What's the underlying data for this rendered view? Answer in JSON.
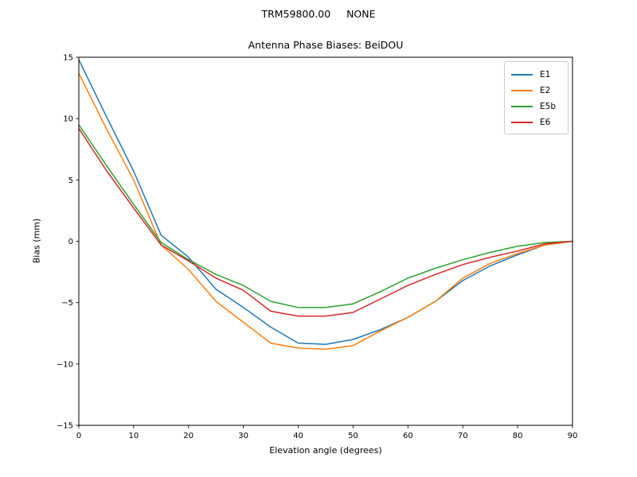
{
  "figure": {
    "title": "TRM59800.00     NONE",
    "background": "#ffffff"
  },
  "chart_data": {
    "type": "line",
    "title": "Antenna Phase Biases: BeiDOU",
    "xlabel": "Elevation angle (degrees)",
    "ylabel": "Bias (mm)",
    "xlim": [
      0,
      90
    ],
    "ylim": [
      -15,
      15
    ],
    "xticks": [
      0,
      10,
      20,
      30,
      40,
      50,
      60,
      70,
      80,
      90
    ],
    "yticks": [
      -15,
      -10,
      -5,
      0,
      5,
      10,
      15
    ],
    "grid": false,
    "legend": {
      "position": "upper right",
      "border_color": "#cccccc"
    },
    "x": [
      0,
      5,
      10,
      15,
      20,
      25,
      30,
      35,
      40,
      45,
      50,
      55,
      60,
      65,
      70,
      75,
      80,
      85,
      90
    ],
    "series": [
      {
        "name": "E1",
        "color": "#1f77b4",
        "values": [
          14.8,
          10.2,
          5.7,
          0.5,
          -1.3,
          -3.9,
          -5.4,
          -7.0,
          -8.3,
          -8.4,
          -8.0,
          -7.2,
          -6.2,
          -4.9,
          -3.2,
          -2.0,
          -1.1,
          -0.3,
          0.0
        ]
      },
      {
        "name": "E2",
        "color": "#ff7f0e",
        "values": [
          13.7,
          9.2,
          5.0,
          -0.3,
          -2.3,
          -4.9,
          -6.6,
          -8.3,
          -8.7,
          -8.8,
          -8.5,
          -7.3,
          -6.2,
          -4.9,
          -3.0,
          -1.8,
          -1.0,
          -0.3,
          0.0
        ]
      },
      {
        "name": "E5b",
        "color": "#2ca02c",
        "values": [
          9.5,
          6.2,
          3.0,
          -0.1,
          -1.5,
          -2.7,
          -3.6,
          -4.9,
          -5.4,
          -5.4,
          -5.1,
          -4.1,
          -3.0,
          -2.2,
          -1.5,
          -0.9,
          -0.4,
          -0.1,
          0.0
        ]
      },
      {
        "name": "E6",
        "color": "#d62728",
        "values": [
          9.2,
          5.8,
          2.7,
          -0.3,
          -1.6,
          -3.0,
          -4.0,
          -5.7,
          -6.1,
          -6.1,
          -5.8,
          -4.7,
          -3.6,
          -2.7,
          -1.9,
          -1.3,
          -0.8,
          -0.2,
          0.0
        ]
      }
    ],
    "axis_color": "#000000",
    "text_color": "#000000"
  }
}
